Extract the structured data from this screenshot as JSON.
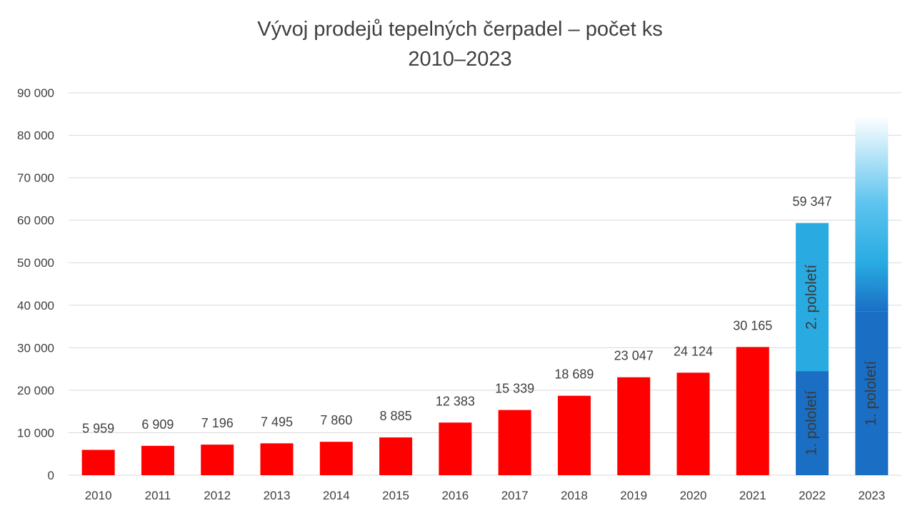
{
  "chart_data": {
    "type": "bar",
    "title": "Vývoj prodejů tepelných čerpadel – počet ks",
    "subtitle": "2010–2023",
    "xlabel": "",
    "ylabel": "",
    "ylim": [
      0,
      90000
    ],
    "yticks": [
      "0",
      "10 000",
      "20 000",
      "30 000",
      "40 000",
      "50 000",
      "60 000",
      "70 000",
      "80 000",
      "90 000"
    ],
    "grid": true,
    "categories": [
      "2010",
      "2011",
      "2012",
      "2013",
      "2014",
      "2015",
      "2016",
      "2017",
      "2018",
      "2019",
      "2020",
      "2021",
      "2022",
      "2023"
    ],
    "values": [
      5959,
      6909,
      7196,
      7495,
      7860,
      8885,
      12383,
      15339,
      18689,
      23047,
      24124,
      30165,
      59347,
      null
    ],
    "value_labels": [
      "5 959",
      "6 909",
      "7 196",
      "7 495",
      "7 860",
      "8 885",
      "12 383",
      "15 339",
      "18 689",
      "23 047",
      "24 124",
      "30 165",
      "59 347",
      ""
    ],
    "split_bars": [
      {
        "category": "2022",
        "segments": [
          {
            "label": "1. pololetí",
            "value": 24500,
            "color": "#1a6fc4"
          },
          {
            "label": "2. pololetí",
            "value": 34847,
            "color": "#29abe2"
          }
        ]
      },
      {
        "category": "2023",
        "segments": [
          {
            "label": "1. pololetí",
            "value": 38500,
            "color": "#1a6fc4"
          },
          {
            "label": "",
            "value": 46000,
            "color": "#29abe2",
            "gradient_fade": true
          }
        ]
      }
    ],
    "colors": {
      "bar": "#ff0000",
      "first_half": "#1a6fc4",
      "second_half": "#29abe2",
      "grid": "#d9d9d9",
      "text": "#404040"
    }
  }
}
